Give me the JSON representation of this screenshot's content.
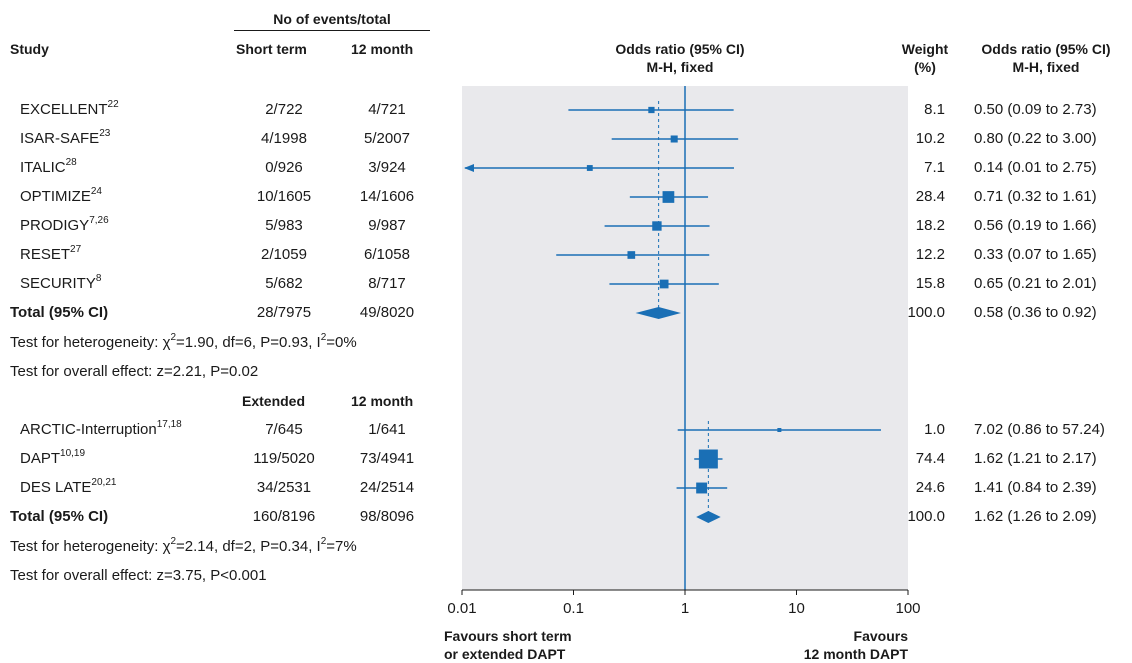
{
  "header": {
    "events_group": "No of events/total",
    "study": "Study",
    "short_term": "Short term",
    "twelve_month": "12 month",
    "or_title": "Odds ratio (95% CI)",
    "or_method": "M-H, fixed",
    "weight": "Weight",
    "weight_unit": "(%)",
    "or_right_title": "Odds ratio (95% CI)",
    "or_right_method": "M-H, fixed"
  },
  "group1": {
    "studies": [
      {
        "name": "EXCELLENT",
        "sup": "22",
        "ev1": "2/722",
        "ev2": "4/721",
        "weight": "8.1",
        "ci_text": "0.50 (0.09 to 2.73)"
      },
      {
        "name": "ISAR-SAFE",
        "sup": "23",
        "ev1": "4/1998",
        "ev2": "5/2007",
        "weight": "10.2",
        "ci_text": "0.80 (0.22 to 3.00)"
      },
      {
        "name": "ITALIC",
        "sup": "28",
        "ev1": "0/926",
        "ev2": "3/924",
        "weight": "7.1",
        "ci_text": "0.14 (0.01 to 2.75)"
      },
      {
        "name": "OPTIMIZE",
        "sup": "24",
        "ev1": "10/1605",
        "ev2": "14/1606",
        "weight": "28.4",
        "ci_text": "0.71 (0.32 to 1.61)"
      },
      {
        "name": "PRODIGY",
        "sup": "7,26",
        "ev1": "5/983",
        "ev2": "9/987",
        "weight": "18.2",
        "ci_text": "0.56 (0.19 to 1.66)"
      },
      {
        "name": "RESET",
        "sup": "27",
        "ev1": "2/1059",
        "ev2": "6/1058",
        "weight": "12.2",
        "ci_text": "0.33 (0.07 to 1.65)"
      },
      {
        "name": "SECURITY",
        "sup": "8",
        "ev1": "5/682",
        "ev2": "8/717",
        "weight": "15.8",
        "ci_text": "0.65 (0.21 to 2.01)"
      }
    ],
    "total": {
      "label": "Total (95% CI)",
      "ev1": "28/7975",
      "ev2": "49/8020",
      "weight": "100.0",
      "ci_text": "0.58 (0.36 to 0.92)"
    },
    "het_a": "Test for heterogeneity: ",
    "het_b": "=1.90, df=6, P=0.93, I",
    "het_c": "=0%",
    "overall": "Test for overall effect: z=2.21, P=0.02"
  },
  "group2": {
    "col1": "Extended",
    "col2": "12 month",
    "studies": [
      {
        "name": "ARCTIC-Interruption",
        "sup": "17,18",
        "ev1": "7/645",
        "ev2": "1/641",
        "weight": "1.0",
        "ci_text": "7.02 (0.86 to 57.24)"
      },
      {
        "name": "DAPT",
        "sup": "10,19",
        "ev1": "119/5020",
        "ev2": "73/4941",
        "weight": "74.4",
        "ci_text": "1.62 (1.21 to 2.17)"
      },
      {
        "name": "DES LATE",
        "sup": "20,21",
        "ev1": "34/2531",
        "ev2": "24/2514",
        "weight": "24.6",
        "ci_text": "1.41 (0.84 to 2.39)"
      }
    ],
    "total": {
      "label": "Total (95% CI)",
      "ev1": "160/8196",
      "ev2": "98/8096",
      "weight": "100.0",
      "ci_text": "1.62 (1.26 to 2.09)"
    },
    "het_a": "Test for heterogeneity: ",
    "het_b": "=2.14, df=2, P=0.34, I",
    "het_c": "=7%",
    "overall": "Test for overall effect: z=3.75, P<0.001"
  },
  "footer": {
    "left_1": "Favours short term",
    "left_2": "or extended DAPT",
    "right_1": "Favours",
    "right_2": "12 month DAPT"
  },
  "colors": {
    "mark": "#1a6fb5",
    "panel": "#e9e9ec",
    "text": "#1a1a1a"
  },
  "chart_data": {
    "type": "forest",
    "x_scale": "log",
    "xlim": [
      0.01,
      100
    ],
    "x_ticks": [
      "0.01",
      "0.1",
      "1",
      "10",
      "100"
    ],
    "reference_line": 1,
    "groups": [
      {
        "studies": [
          {
            "name": "EXCELLENT",
            "or": 0.5,
            "lo": 0.09,
            "hi": 2.73,
            "weight": 8.1
          },
          {
            "name": "ISAR-SAFE",
            "or": 0.8,
            "lo": 0.22,
            "hi": 3.0,
            "weight": 10.2
          },
          {
            "name": "ITALIC",
            "or": 0.14,
            "lo": 0.01,
            "hi": 2.75,
            "weight": 7.1
          },
          {
            "name": "OPTIMIZE",
            "or": 0.71,
            "lo": 0.32,
            "hi": 1.61,
            "weight": 28.4
          },
          {
            "name": "PRODIGY",
            "or": 0.56,
            "lo": 0.19,
            "hi": 1.66,
            "weight": 18.2
          },
          {
            "name": "RESET",
            "or": 0.33,
            "lo": 0.07,
            "hi": 1.65,
            "weight": 12.2
          },
          {
            "name": "SECURITY",
            "or": 0.65,
            "lo": 0.21,
            "hi": 2.01,
            "weight": 15.8
          }
        ],
        "total": {
          "or": 0.58,
          "lo": 0.36,
          "hi": 0.92
        }
      },
      {
        "studies": [
          {
            "name": "ARCTIC-Interruption",
            "or": 7.02,
            "lo": 0.86,
            "hi": 57.24,
            "weight": 1.0
          },
          {
            "name": "DAPT",
            "or": 1.62,
            "lo": 1.21,
            "hi": 2.17,
            "weight": 74.4
          },
          {
            "name": "DES LATE",
            "or": 1.41,
            "lo": 0.84,
            "hi": 2.39,
            "weight": 24.6
          }
        ],
        "total": {
          "or": 1.62,
          "lo": 1.26,
          "hi": 2.09
        }
      }
    ]
  }
}
